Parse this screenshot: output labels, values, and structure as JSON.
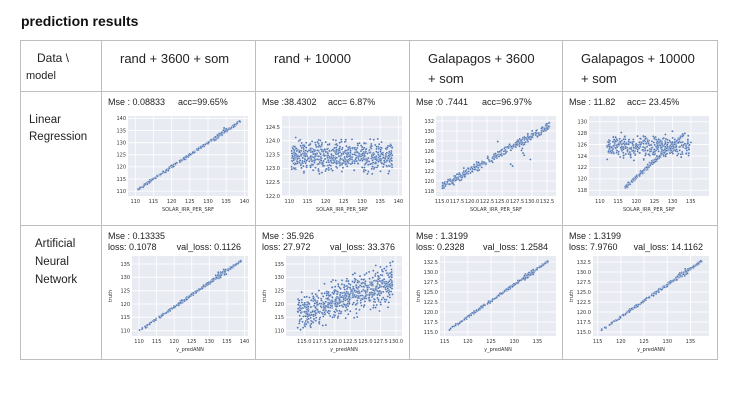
{
  "page_title": "prediction results",
  "table": {
    "corner_top": "Data \\",
    "corner_bottom": "model",
    "columns": [
      {
        "label": "rand + 3600 + som"
      },
      {
        "label": "rand + 10000"
      },
      {
        "label": "Galapagos + 3600 + som"
      },
      {
        "label": "Galapagos + 10000 + som"
      }
    ],
    "rows": [
      {
        "label": "Linear Regression",
        "cells": [
          {
            "mse": "Mse : 0.08833",
            "acc": "acc=99.65%"
          },
          {
            "mse": "Mse :38.4302",
            "acc": "acc= 6.87%"
          },
          {
            "mse": "Mse :0 .7441",
            "acc": "acc=96.97%"
          },
          {
            "mse": "Mse : 11.82",
            "acc": "acc= 23.45%"
          }
        ]
      },
      {
        "label": "Artificial Neural Network",
        "cells": [
          {
            "mse": "Mse : 0.13335",
            "loss": "loss: 0.1078",
            "val_loss": "val_loss: 0.1126"
          },
          {
            "mse": "Mse : 35.926",
            "loss": "loss: 27.972",
            "val_loss": "val_loss: 33.376"
          },
          {
            "mse": "Mse : 1.3199",
            "loss": "loss: 0.2328",
            "val_loss": "val_loss: 1.2584"
          },
          {
            "mse": "Mse : 1.3199",
            "loss": "loss: 7.9760",
            "val_loss": "val_loss: 14.1162"
          }
        ]
      }
    ]
  },
  "chart_data": [
    {
      "type": "scatter",
      "id": "lr-c1",
      "pattern": "line",
      "xlabel": "SOLAR_IRR_PER_SRF",
      "ylabel": "",
      "xlim": [
        108,
        141
      ],
      "ylim": [
        108,
        141
      ],
      "xticks": [
        "110",
        "115",
        "120",
        "125",
        "130",
        "135",
        "140"
      ],
      "yticks": [
        "110",
        "115",
        "120",
        "125",
        "130",
        "135",
        "140"
      ]
    },
    {
      "type": "scatter",
      "id": "lr-c2",
      "pattern": "blob",
      "xlabel": "SOLAR_IRR_PER_SRF",
      "ylabel": "",
      "xlim": [
        108,
        141
      ],
      "ylim": [
        122.0,
        124.9
      ],
      "xticks": [
        "110",
        "115",
        "120",
        "125",
        "130",
        "135",
        "140"
      ],
      "yticks": [
        "122.0",
        "122.5",
        "123.0",
        "123.5",
        "124.0",
        "124.5"
      ]
    },
    {
      "type": "scatter",
      "id": "lr-c3",
      "pattern": "band",
      "xlabel": "SOLAR_IRR_PER_SRF",
      "ylabel": "",
      "xlim": [
        114,
        134
      ],
      "ylim": [
        117,
        133
      ],
      "xticks": [
        "115.0",
        "117.5",
        "120.0",
        "122.5",
        "125.0",
        "127.5",
        "130.0",
        "132.5"
      ],
      "yticks": [
        "118",
        "120",
        "122",
        "124",
        "126",
        "128",
        "130",
        "132"
      ]
    },
    {
      "type": "scatter",
      "id": "lr-c4",
      "pattern": "v",
      "xlabel": "SOLAR_IRR_PER_SRF",
      "ylabel": "",
      "xlim": [
        107,
        140
      ],
      "ylim": [
        117,
        131
      ],
      "xticks": [
        "110",
        "115",
        "120",
        "125",
        "130",
        "135"
      ],
      "yticks": [
        "118",
        "120",
        "122",
        "124",
        "126",
        "128",
        "130"
      ]
    },
    {
      "type": "scatter",
      "id": "ann-c1",
      "pattern": "line",
      "xlabel": "y_predANN",
      "ylabel": "truth",
      "xlim": [
        108,
        141
      ],
      "ylim": [
        108,
        138
      ],
      "xticks": [
        "110",
        "115",
        "120",
        "125",
        "130",
        "135",
        "140"
      ],
      "yticks": [
        "110",
        "115",
        "120",
        "125",
        "130",
        "135"
      ]
    },
    {
      "type": "scatter",
      "id": "ann-c2",
      "pattern": "blob2",
      "xlabel": "y_predANN",
      "ylabel": "truth",
      "xlim": [
        112,
        131
      ],
      "ylim": [
        108,
        138
      ],
      "xticks": [
        "115.0",
        "117.5",
        "120.0",
        "122.5",
        "125.0",
        "127.5",
        "130.0"
      ],
      "yticks": [
        "110",
        "115",
        "120",
        "125",
        "130",
        "135"
      ]
    },
    {
      "type": "scatter",
      "id": "ann-c3",
      "pattern": "line",
      "xlabel": "y_predANN",
      "ylabel": "truth",
      "xlim": [
        114,
        139
      ],
      "ylim": [
        114,
        134
      ],
      "xticks": [
        "115",
        "120",
        "125",
        "130",
        "135"
      ],
      "yticks": [
        "115.0",
        "117.5",
        "120.0",
        "122.5",
        "125.0",
        "127.5",
        "130.0",
        "132.5"
      ]
    },
    {
      "type": "scatter",
      "id": "ann-c4",
      "pattern": "line",
      "xlabel": "y_predANN",
      "ylabel": "truth",
      "xlim": [
        114,
        139
      ],
      "ylim": [
        114,
        134
      ],
      "xticks": [
        "115",
        "120",
        "125",
        "130",
        "135"
      ],
      "yticks": [
        "115.0",
        "117.5",
        "120.0",
        "122.5",
        "125.0",
        "127.5",
        "130.0",
        "132.5"
      ]
    }
  ]
}
